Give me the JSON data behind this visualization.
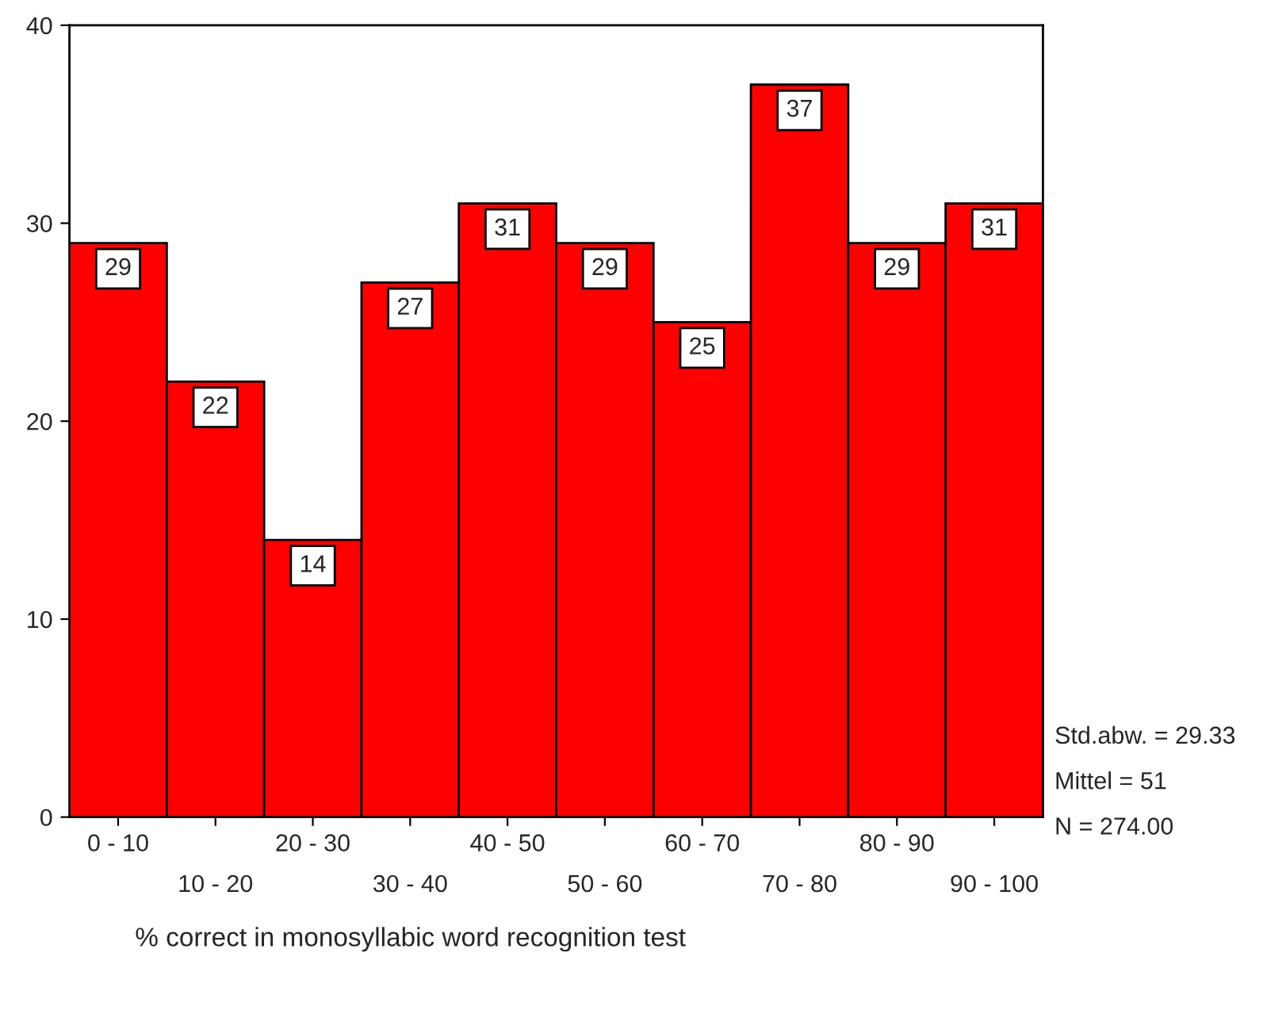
{
  "chart_data": {
    "type": "bar",
    "xlabel": "% correct in monosyllabic word recognition test",
    "categories": [
      "0 - 10",
      "10 - 20",
      "20 - 30",
      "30 - 40",
      "40 - 50",
      "50 - 60",
      "60 - 70",
      "70 - 80",
      "80 - 90",
      "90 - 100"
    ],
    "values": [
      29,
      22,
      14,
      27,
      31,
      29,
      25,
      37,
      29,
      31
    ],
    "color": "#ff0000",
    "ylim": [
      0,
      40
    ],
    "yticks": [
      0,
      10,
      20,
      30,
      40
    ],
    "data_labels": true,
    "grid": false,
    "legend": false,
    "annotations": [
      "Std.abw. = 29.33",
      "Mittel = 51",
      "N = 274.00"
    ]
  }
}
